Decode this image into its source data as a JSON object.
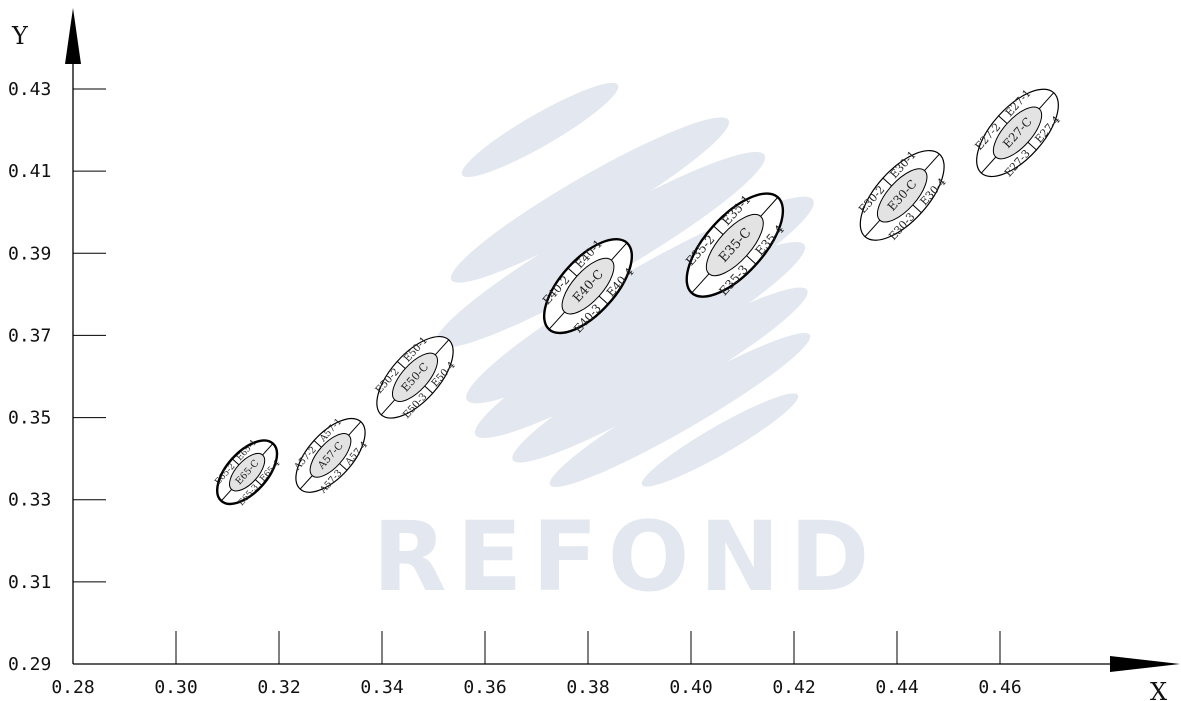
{
  "chart_data": {
    "type": "scatter",
    "xlabel": "X",
    "ylabel": "Y",
    "xlim": [
      0.28,
      0.48
    ],
    "ylim": [
      0.29,
      0.43
    ],
    "xticks": [
      "0.28",
      "0.30",
      "0.32",
      "0.34",
      "0.36",
      "0.38",
      "0.40",
      "0.42",
      "0.44",
      "0.46"
    ],
    "yticks": [
      "0.29",
      "0.31",
      "0.33",
      "0.35",
      "0.37",
      "0.39",
      "0.41",
      "0.43"
    ],
    "grid": false,
    "watermark": "REFOND",
    "zones": [
      {
        "center_label": "E65-C",
        "x": 0.3138,
        "y": 0.3367,
        "rx": 0.0075,
        "ry": 0.0049,
        "labels": [
          "E65-1",
          "E65-2",
          "E65-3",
          "E65-4"
        ],
        "outline": "bold"
      },
      {
        "center_label": "A57-C",
        "x": 0.33,
        "y": 0.3408,
        "rx": 0.0088,
        "ry": 0.0054,
        "labels": [
          "A57-1",
          "A57-2",
          "A57-3",
          "A57-4"
        ],
        "outline": "thin"
      },
      {
        "center_label": "E50-C",
        "x": 0.3464,
        "y": 0.3598,
        "rx": 0.0098,
        "ry": 0.0058,
        "labels": [
          "E50-1",
          "E50-2",
          "E50-3",
          "E50-4"
        ],
        "outline": "thin"
      },
      {
        "center_label": "E40-C",
        "x": 0.38,
        "y": 0.382,
        "rx": 0.0113,
        "ry": 0.0066,
        "labels": [
          "E40-1",
          "E40-2",
          "E40-3",
          "E40-4"
        ],
        "outline": "bold"
      },
      {
        "center_label": "E35-C",
        "x": 0.4085,
        "y": 0.392,
        "rx": 0.0125,
        "ry": 0.007,
        "labels": [
          "E35-1",
          "E35-2",
          "E35-3",
          "E35-4"
        ],
        "outline": "bold"
      },
      {
        "center_label": "E30-C",
        "x": 0.441,
        "y": 0.4041,
        "rx": 0.0108,
        "ry": 0.0063,
        "labels": [
          "E30-1",
          "E30-2",
          "E30-3",
          "E30-4"
        ],
        "outline": "thin"
      },
      {
        "center_label": "E27-C",
        "x": 0.4634,
        "y": 0.4193,
        "rx": 0.0105,
        "ry": 0.0062,
        "labels": [
          "E27-1",
          "E27-2",
          "E27-3",
          "E27-4"
        ],
        "outline": "thin"
      }
    ],
    "colors": {
      "axis": "#000000",
      "outline": "#000000",
      "inner_fill": "#e3e3e3",
      "watermark": "#e3e7ef"
    }
  }
}
